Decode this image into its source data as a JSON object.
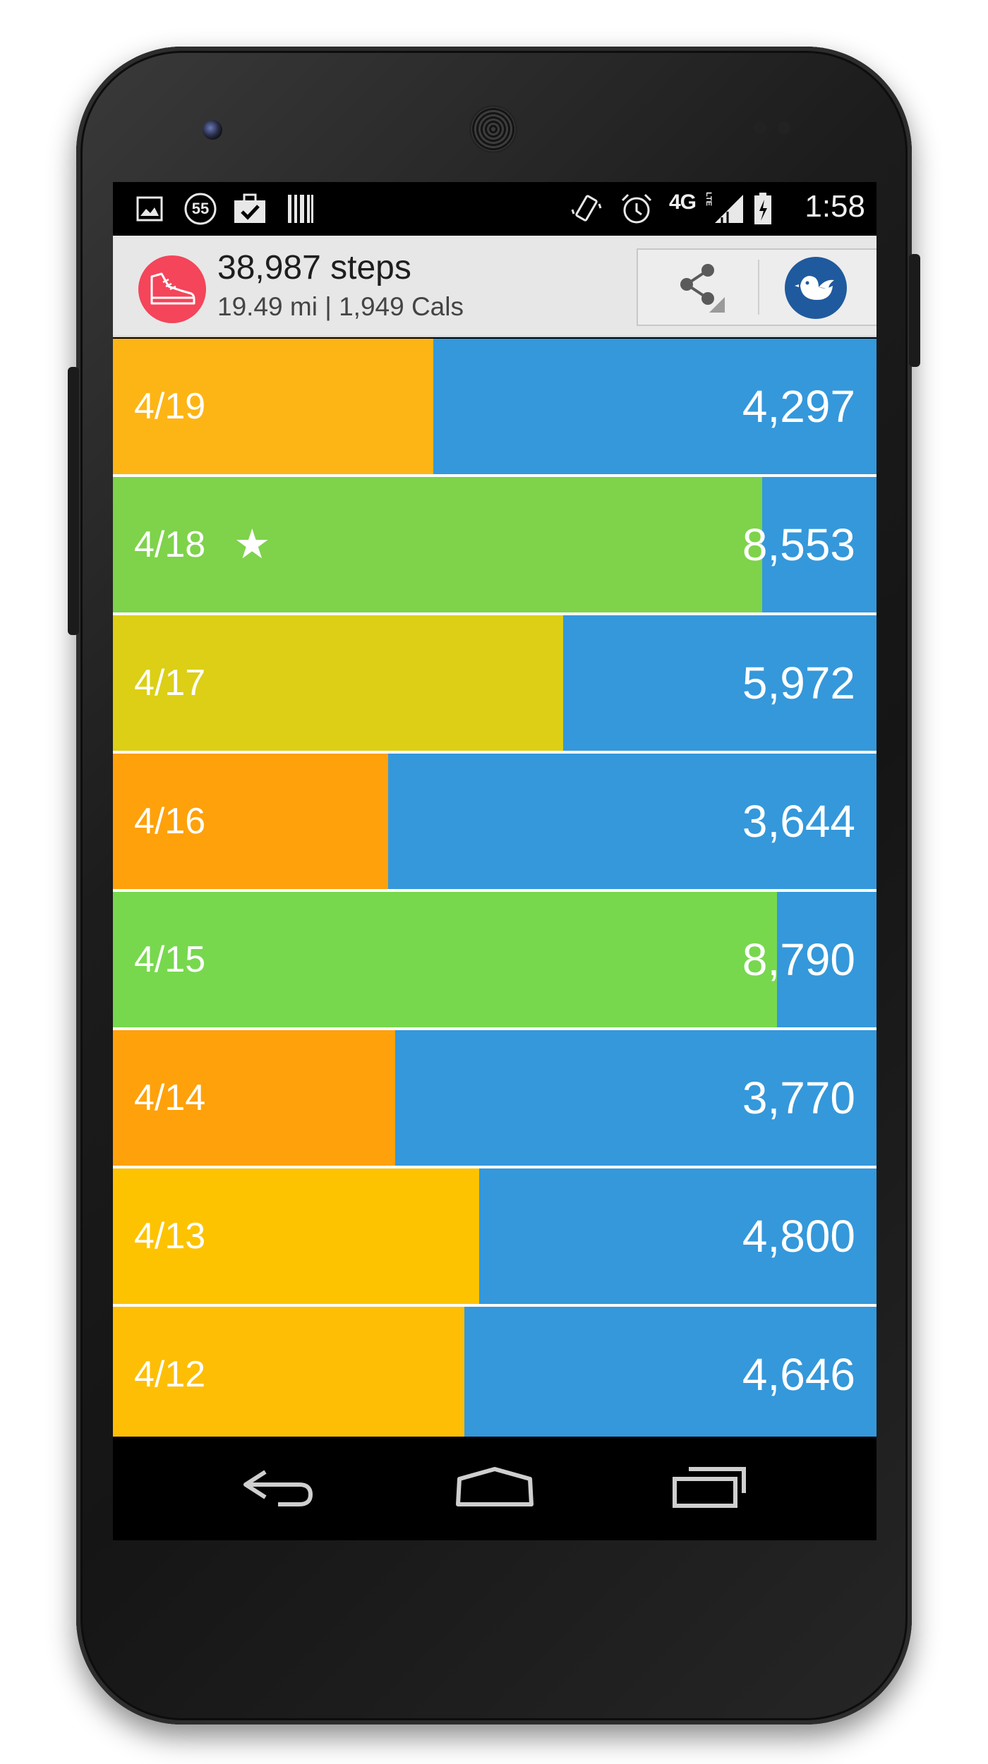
{
  "status_bar": {
    "notification_icons": [
      "image-icon",
      "badge-55-icon",
      "briefcase-check-icon",
      "barcode-icon"
    ],
    "badge_count": "55",
    "system_icons": [
      "vibrate-icon",
      "alarm-icon",
      "signal-icon",
      "battery-icon"
    ],
    "network": "4G",
    "network_sub": "LTE",
    "time": "1:58"
  },
  "header": {
    "steps_total": "38,987 steps",
    "summary": "19.49 mi | 1,949 Cals",
    "share_icon": "share-icon",
    "bird_icon": "bird-icon"
  },
  "colors": {
    "remaining": "#3498db",
    "orange_yellow": "#fdb515",
    "green": "#7ed34a",
    "olive_yellow": "#dccf16",
    "orange": "#fea10b",
    "yellow": "#fdc301",
    "logo": "#f4455a",
    "bird": "#1f5a9e"
  },
  "days": [
    {
      "date": "4/19",
      "steps": "4,297",
      "progress": 0.42,
      "color": "#fdb515",
      "starred": false
    },
    {
      "date": "4/18",
      "steps": "8,553",
      "progress": 0.85,
      "color": "#7ed34a",
      "starred": true
    },
    {
      "date": "4/17",
      "steps": "5,972",
      "progress": 0.59,
      "color": "#dccf16",
      "starred": false
    },
    {
      "date": "4/16",
      "steps": "3,644",
      "progress": 0.36,
      "color": "#fea10b",
      "starred": false
    },
    {
      "date": "4/15",
      "steps": "8,790",
      "progress": 0.87,
      "color": "#77d84e",
      "starred": false
    },
    {
      "date": "4/14",
      "steps": "3,770",
      "progress": 0.37,
      "color": "#fea10b",
      "starred": false
    },
    {
      "date": "4/13",
      "steps": "4,800",
      "progress": 0.48,
      "color": "#fdc301",
      "starred": false
    },
    {
      "date": "4/12",
      "steps": "4,646",
      "progress": 0.46,
      "color": "#fdbe05",
      "starred": false
    }
  ],
  "star_glyph": "★",
  "nav": {
    "back_icon": "back-icon",
    "home_icon": "home-icon",
    "recents_icon": "recents-icon"
  }
}
